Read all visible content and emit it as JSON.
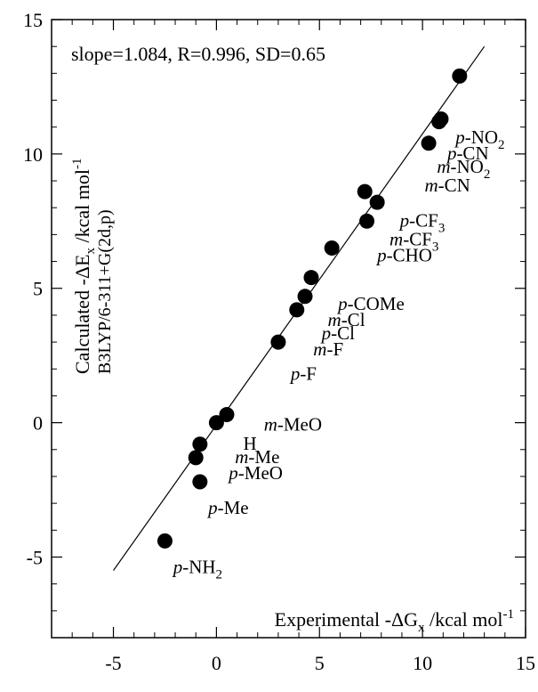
{
  "chart_data": {
    "type": "scatter",
    "title": "",
    "annotation": "slope=1.084, R=0.996, SD=0.65",
    "xlabel": {
      "main": "Experimental -ΔG",
      "sub": "x",
      "unit": " /kcal mol",
      "sup": "-1"
    },
    "ylabel": {
      "line1": {
        "main": "Calculated -ΔE",
        "sub": "x",
        "unit": " /kcal mol",
        "sup": "-1"
      },
      "line2": "B3LYP/6-311+G(2d,p)"
    },
    "xlim": [
      -8,
      15
    ],
    "ylim": [
      -8,
      15
    ],
    "xticks": [
      -5,
      0,
      5,
      10,
      15
    ],
    "yticks": [
      -5,
      0,
      5,
      10,
      15
    ],
    "grid": false,
    "regression_line": {
      "x": [
        -5,
        13
      ],
      "y": [
        -5.5,
        14
      ]
    },
    "points": [
      {
        "x": -2.5,
        "y": -4.4
      },
      {
        "x": -0.8,
        "y": -2.2
      },
      {
        "x": -1.0,
        "y": -1.3
      },
      {
        "x": -0.8,
        "y": -0.8
      },
      {
        "x": 0.0,
        "y": 0.0
      },
      {
        "x": 0.5,
        "y": 0.3
      },
      {
        "x": 3.0,
        "y": 3.0
      },
      {
        "x": 3.9,
        "y": 4.2
      },
      {
        "x": 4.3,
        "y": 4.7
      },
      {
        "x": 4.6,
        "y": 5.4
      },
      {
        "x": 5.6,
        "y": 6.5
      },
      {
        "x": 7.3,
        "y": 7.5
      },
      {
        "x": 7.2,
        "y": 8.6
      },
      {
        "x": 7.8,
        "y": 8.2
      },
      {
        "x": 10.3,
        "y": 10.4
      },
      {
        "x": 10.8,
        "y": 11.2
      },
      {
        "x": 10.9,
        "y": 11.3
      },
      {
        "x": 11.8,
        "y": 12.9
      }
    ],
    "labels": [
      {
        "prefix": "p",
        "text": "-NH",
        "sub": "2",
        "x": -2.1,
        "y": -5.6
      },
      {
        "prefix": "p",
        "text": "-Me",
        "sub": "",
        "x": -0.4,
        "y": -3.4
      },
      {
        "prefix": "p",
        "text": "-MeO",
        "sub": "",
        "x": 0.6,
        "y": -2.1
      },
      {
        "prefix": "m",
        "text": "-Me",
        "sub": "",
        "x": 0.9,
        "y": -1.5
      },
      {
        "prefix": "",
        "text": "H",
        "sub": "",
        "x": 1.3,
        "y": -1.0
      },
      {
        "prefix": "m",
        "text": "-MeO",
        "sub": "",
        "x": 2.3,
        "y": -0.3
      },
      {
        "prefix": "p",
        "text": "-F",
        "sub": "",
        "x": 3.6,
        "y": 1.6
      },
      {
        "prefix": "m",
        "text": "-F",
        "sub": "",
        "x": 4.7,
        "y": 2.5
      },
      {
        "prefix": "p",
        "text": "-Cl",
        "sub": "",
        "x": 5.1,
        "y": 3.1
      },
      {
        "prefix": "m",
        "text": "-Cl",
        "sub": "",
        "x": 5.4,
        "y": 3.6
      },
      {
        "prefix": "p",
        "text": "-COMe",
        "sub": "",
        "x": 5.9,
        "y": 4.2
      },
      {
        "prefix": "p",
        "text": "-CHO",
        "sub": "",
        "x": 7.8,
        "y": 6.0
      },
      {
        "prefix": "m",
        "text": "-CF",
        "sub": "3",
        "x": 8.4,
        "y": 6.6
      },
      {
        "prefix": "p",
        "text": "-CF",
        "sub": "3",
        "x": 8.9,
        "y": 7.3
      },
      {
        "prefix": "m",
        "text": "-CN",
        "sub": "",
        "x": 10.1,
        "y": 8.6
      },
      {
        "prefix": "m",
        "text": "-NO",
        "sub": "2",
        "x": 10.7,
        "y": 9.3
      },
      {
        "prefix": "p",
        "text": "-CN",
        "sub": "",
        "x": 11.2,
        "y": 9.8
      },
      {
        "prefix": "p",
        "text": "-NO",
        "sub": "2",
        "x": 11.6,
        "y": 10.4
      }
    ]
  }
}
